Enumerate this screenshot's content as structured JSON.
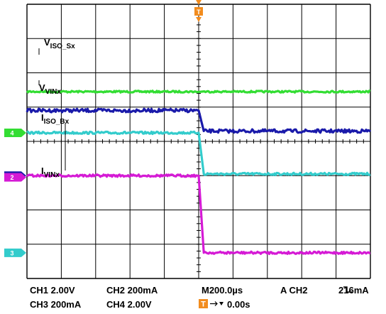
{
  "chart_data": {
    "type": "line",
    "instrument": "oscilloscope",
    "grid": true,
    "divisions": {
      "x": 10,
      "y": 8
    },
    "time_per_div_us": 200.0,
    "trigger_time_us": 1000.0,
    "series": [
      {
        "channel": 1,
        "name": "V_VINx",
        "color": "#1a1aaa",
        "level_before_div": 4.9,
        "level_after_div": 4.3,
        "edge_time_us": 1000,
        "marker": "1",
        "ground_div": 3.0
      },
      {
        "channel": 2,
        "name": "I_VINx",
        "color": "#d51ad5",
        "level_before_div": 3.0,
        "level_after_div": 0.75,
        "edge_time_us": 1000,
        "marker": "2",
        "ground_div": 2.95
      },
      {
        "channel": 3,
        "name": "I_ISO_Bx",
        "color": "#33cccc",
        "level_before_div": 4.25,
        "level_after_div": 3.05,
        "edge_time_us": 1000,
        "marker": "3",
        "ground_div": 0.75
      },
      {
        "channel": 4,
        "name": "V_ISO_Sx",
        "color": "#33dd33",
        "level_before_div": 5.45,
        "level_after_div": 5.45,
        "edge_time_us": 1000,
        "marker": "4",
        "ground_div": 4.25
      }
    ],
    "labels": [
      {
        "main": "V",
        "sub": "ISO_Sx"
      },
      {
        "main": "V",
        "sub": "VINx"
      },
      {
        "main": "I",
        "sub": "ISO_Bx"
      },
      {
        "main": "I",
        "sub": "VINx"
      }
    ],
    "settings": {
      "ch1": "CH1  2.00V",
      "ch2": "CH2  200mA",
      "ch3": "CH3  200mA",
      "ch4": "CH4  2.00V",
      "timebase": "M200.0µs",
      "trigger": "A  CH2",
      "trigger_level": "216mA",
      "trigger_marker": "T",
      "trigger_pos": "0.00s"
    }
  }
}
